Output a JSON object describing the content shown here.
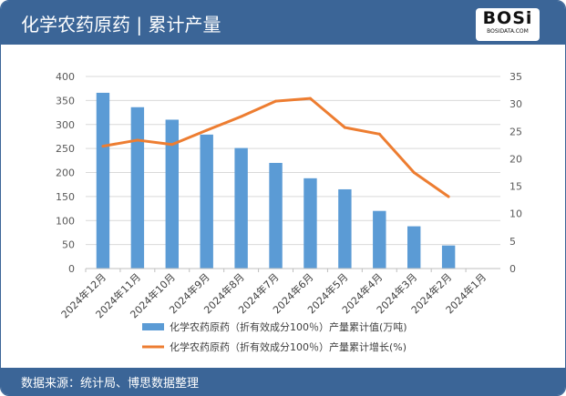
{
  "header": {
    "title": "化学农药原药 | 累计产量",
    "logo_text": "BOSi",
    "logo_sub": "BOSIDATA.COM"
  },
  "footer": {
    "source": "数据来源：统计局、博思数据整理"
  },
  "colors": {
    "bar": "#5b9bd5",
    "line": "#ed7d31",
    "header": "#3b6597"
  },
  "chart_data": {
    "type": "bar+line",
    "categories": [
      "2024年12月",
      "2024年11月",
      "2024年10月",
      "2024年9月",
      "2024年8月",
      "2024年7月",
      "2024年6月",
      "2024年5月",
      "2024年4月",
      "2024年3月",
      "2024年2月",
      "2024年1月"
    ],
    "series": [
      {
        "name": "化学农药原药（折有效成分100％）产量累计值(万吨)",
        "type": "bar",
        "axis": "left",
        "values": [
          366,
          336,
          310,
          279,
          251,
          220,
          188,
          165,
          120,
          88,
          48,
          null
        ]
      },
      {
        "name": "化学农药原药（折有效成分100％）产量累计增长(%)",
        "type": "line",
        "axis": "right",
        "values": [
          22.3,
          23.4,
          22.6,
          25.2,
          27.7,
          30.5,
          31.0,
          25.7,
          24.5,
          17.5,
          13.1,
          null
        ]
      }
    ],
    "ylim_left": [
      0,
      400
    ],
    "yticks_left": [
      0,
      50,
      100,
      150,
      200,
      250,
      300,
      350,
      400
    ],
    "ylim_right": [
      0,
      35
    ],
    "yticks_right": [
      0,
      5,
      10,
      15,
      20,
      25,
      30,
      35
    ],
    "grid": true,
    "legend": "bottom"
  }
}
